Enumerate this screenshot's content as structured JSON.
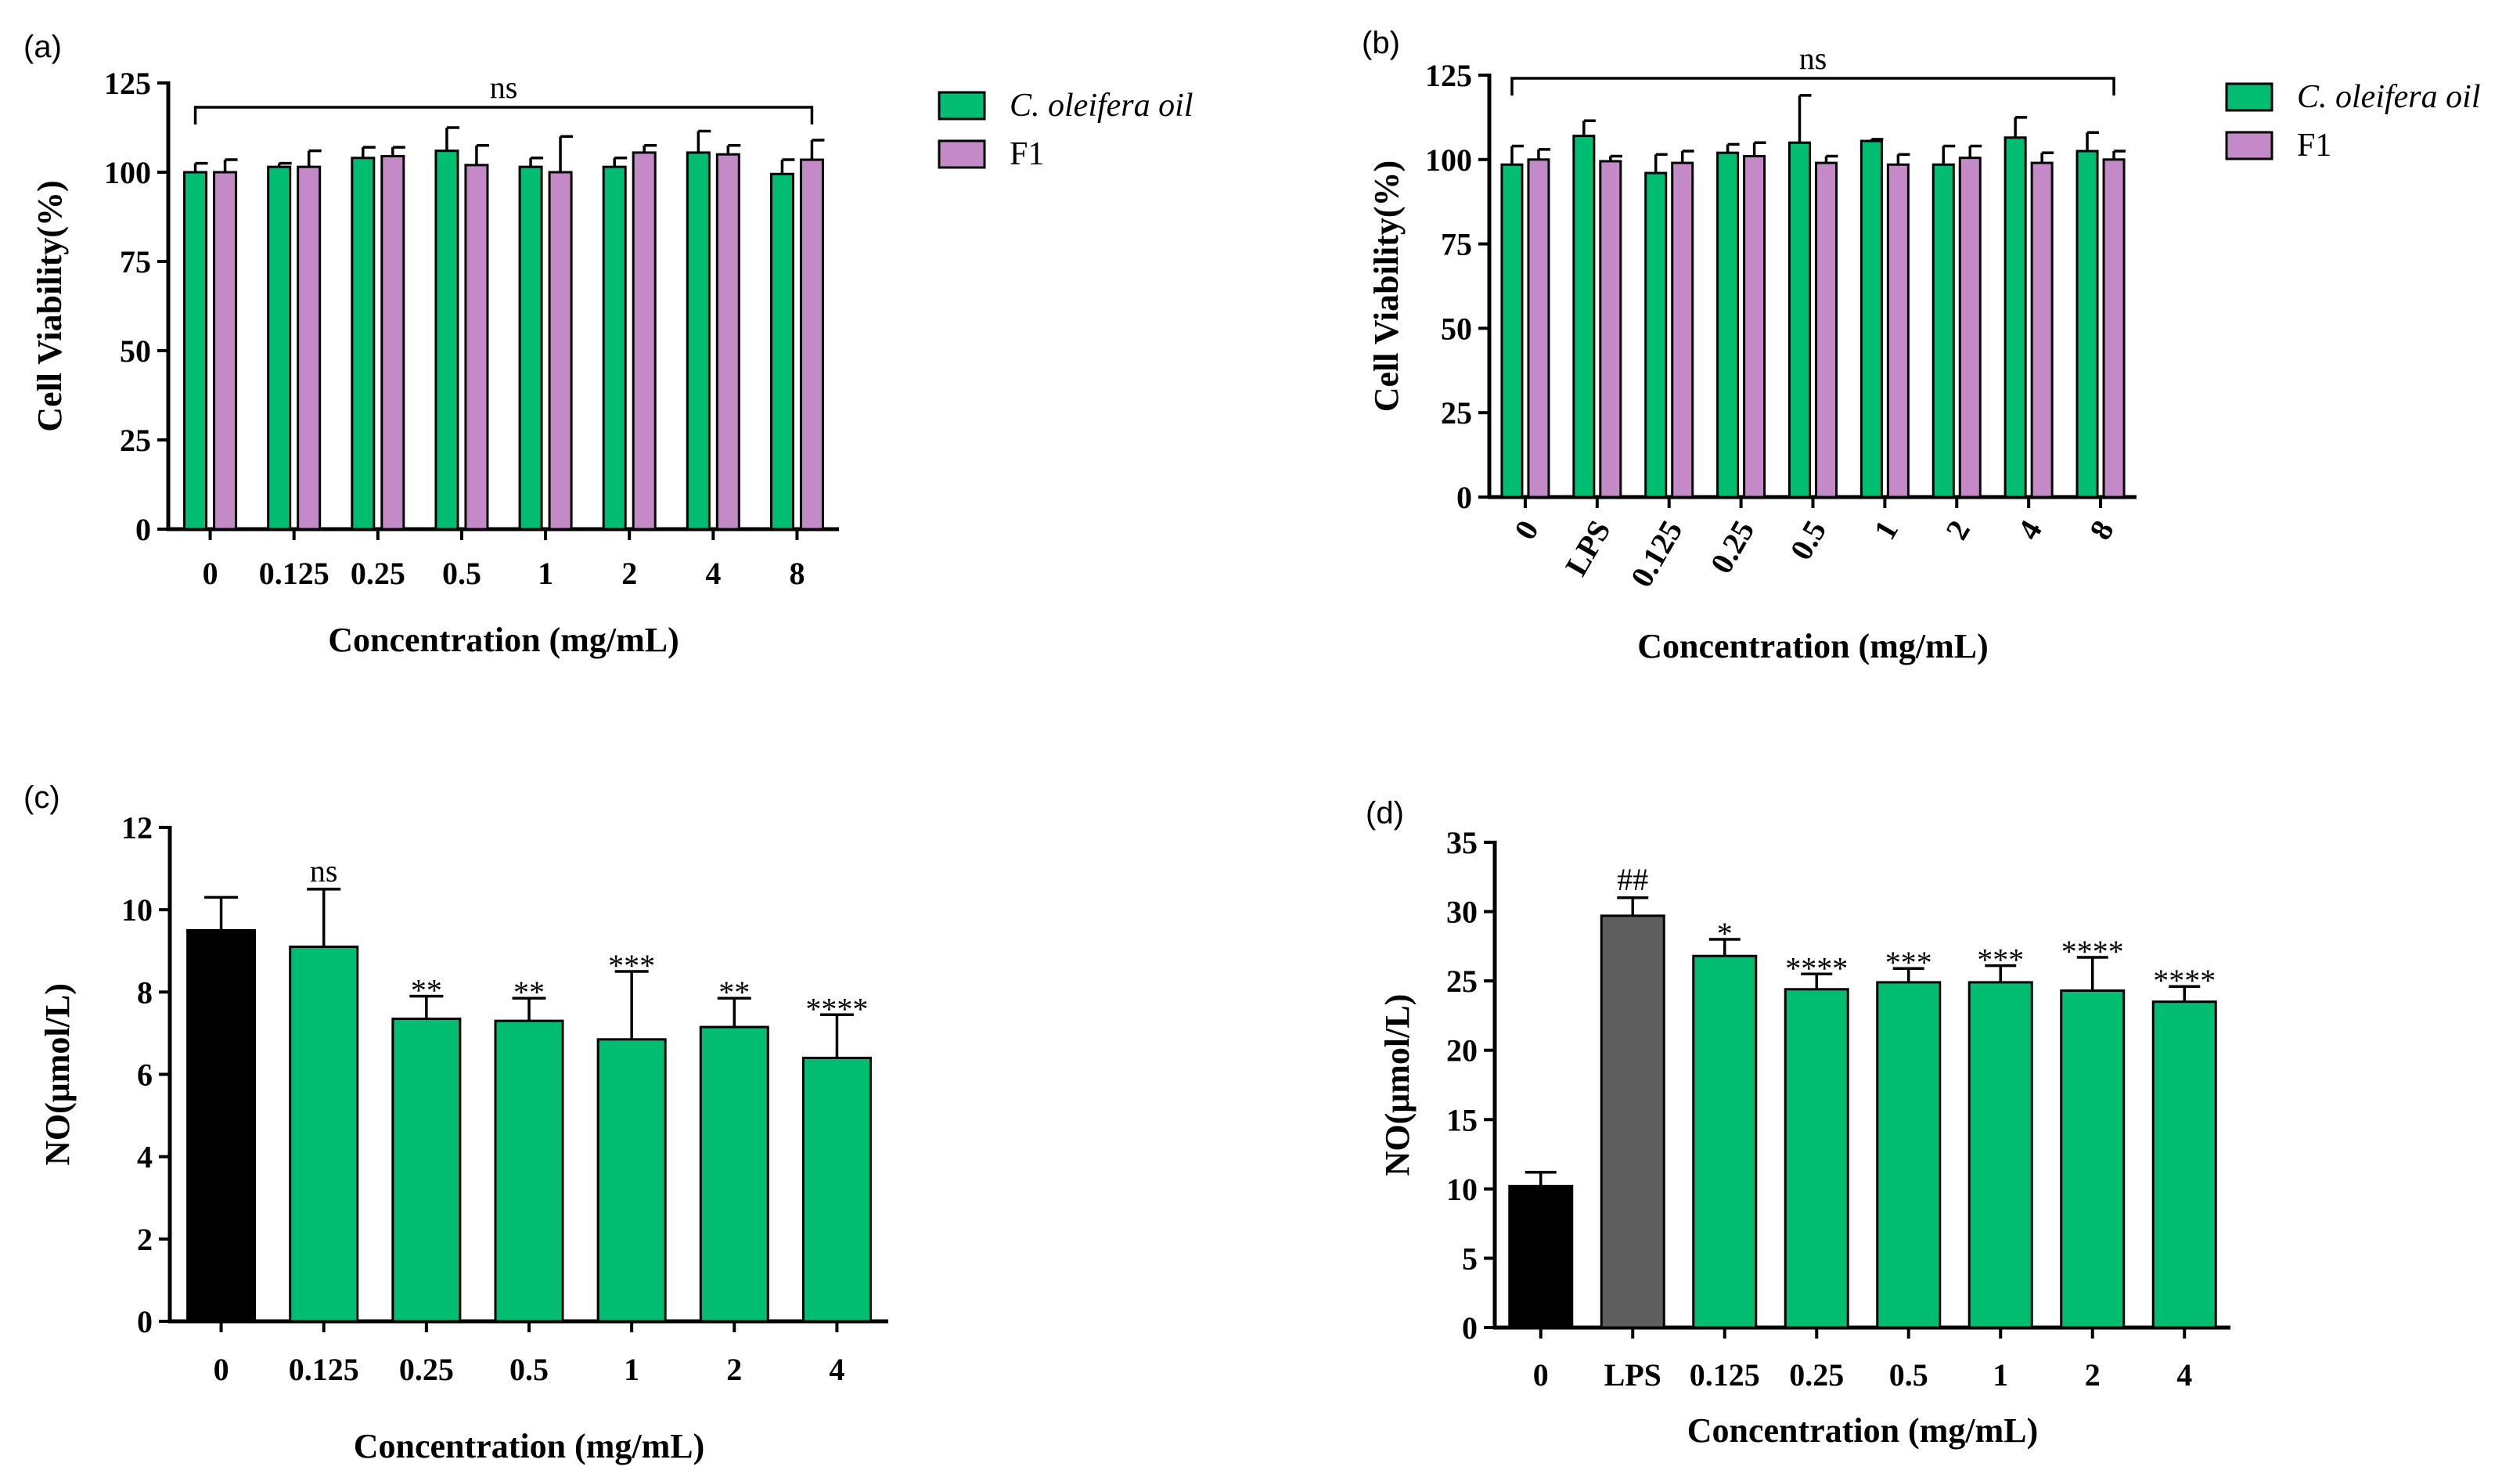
{
  "colors": {
    "green": "#00BD72",
    "purple": "#C48AC8",
    "black": "#000000",
    "gray": "#5E5E5E"
  },
  "legend": [
    {
      "label": "C. oleifera oil",
      "color": "#00BD72",
      "italic": true
    },
    {
      "label": "F1",
      "color": "#C48AC8",
      "italic": false
    }
  ],
  "chart_data": [
    {
      "panel": "(a)",
      "type": "bar",
      "grouped": true,
      "categories": [
        "0",
        "0.125",
        "0.25",
        "0.5",
        "1",
        "2",
        "4",
        "8"
      ],
      "series": [
        {
          "name": "C. oleifera oil",
          "values": [
            100,
            101.5,
            104,
            106,
            101.5,
            101.5,
            105.5,
            99.5
          ],
          "errors": [
            2.5,
            1,
            3,
            6.5,
            2.5,
            2.5,
            6,
            4
          ]
        },
        {
          "name": "F1",
          "values": [
            100,
            101.5,
            104.5,
            102,
            100,
            105.5,
            105,
            103.5
          ],
          "errors": [
            3.5,
            4.5,
            2.5,
            5.5,
            10,
            2,
            2.5,
            5.5
          ]
        }
      ],
      "xlabel": "Concentration (mg/mL)",
      "ylabel": "Cell Viability(%)",
      "ylim": [
        0,
        125
      ],
      "yticks": [
        0,
        25,
        50,
        75,
        100,
        125
      ],
      "bracket_label": "ns",
      "xtick_rotation": 0
    },
    {
      "panel": "(b)",
      "type": "bar",
      "grouped": true,
      "categories": [
        "0",
        "LPS",
        "0.125",
        "0.25",
        "0.5",
        "1",
        "2",
        "4",
        "8"
      ],
      "series": [
        {
          "name": "C. oleifera oil",
          "values": [
            98.5,
            107,
            96,
            102,
            105,
            105.5,
            98.5,
            106.5,
            102.5
          ],
          "errors": [
            5.5,
            4.5,
            5.5,
            2.5,
            14,
            0.5,
            5.5,
            6,
            5.5
          ]
        },
        {
          "name": "F1",
          "values": [
            100,
            99.5,
            99,
            101,
            99,
            98.5,
            100.5,
            99,
            100
          ],
          "errors": [
            3,
            1.5,
            3.5,
            4,
            2,
            3,
            3.5,
            3,
            2.5
          ]
        }
      ],
      "xlabel": "Concentration (mg/mL)",
      "ylabel": "Cell Viability(%)",
      "ylim": [
        0,
        125
      ],
      "yticks": [
        0,
        25,
        50,
        75,
        100,
        125
      ],
      "bracket_label": "ns",
      "xtick_rotation": -60
    },
    {
      "panel": "(c)",
      "type": "bar",
      "grouped": false,
      "categories": [
        "0",
        "0.125",
        "0.25",
        "0.5",
        "1",
        "2",
        "4"
      ],
      "values": [
        9.5,
        9.1,
        7.35,
        7.3,
        6.85,
        7.15,
        6.4
      ],
      "errors": [
        0.8,
        1.4,
        0.55,
        0.55,
        1.65,
        0.7,
        1.05
      ],
      "bar_colors": [
        "#000000",
        "#00BD72",
        "#00BD72",
        "#00BD72",
        "#00BD72",
        "#00BD72",
        "#00BD72"
      ],
      "significance": [
        "",
        "ns",
        "**",
        "**",
        "***",
        "**",
        "****"
      ],
      "xlabel": "Concentration (mg/mL)",
      "ylabel": "NO(μmol/L)",
      "ylim": [
        0,
        12
      ],
      "yticks": [
        0,
        2,
        4,
        6,
        8,
        10,
        12
      ]
    },
    {
      "panel": "(d)",
      "type": "bar",
      "grouped": false,
      "categories": [
        "0",
        "LPS",
        "0.125",
        "0.25",
        "0.5",
        "1",
        "2",
        "4"
      ],
      "values": [
        10.2,
        29.7,
        26.8,
        24.4,
        24.9,
        24.9,
        24.3,
        23.5
      ],
      "errors": [
        1.0,
        1.3,
        1.2,
        1.1,
        1.0,
        1.2,
        2.4,
        1.1
      ],
      "bar_colors": [
        "#000000",
        "#5E5E5E",
        "#00BD72",
        "#00BD72",
        "#00BD72",
        "#00BD72",
        "#00BD72",
        "#00BD72"
      ],
      "significance": [
        "",
        "##",
        "*",
        "****",
        "***",
        "***",
        "****",
        "****"
      ],
      "xlabel": "Concentration (mg/mL)",
      "ylabel": "NO(μmol/L)",
      "ylim": [
        0,
        35
      ],
      "yticks": [
        0,
        5,
        10,
        15,
        20,
        25,
        30,
        35
      ]
    }
  ]
}
